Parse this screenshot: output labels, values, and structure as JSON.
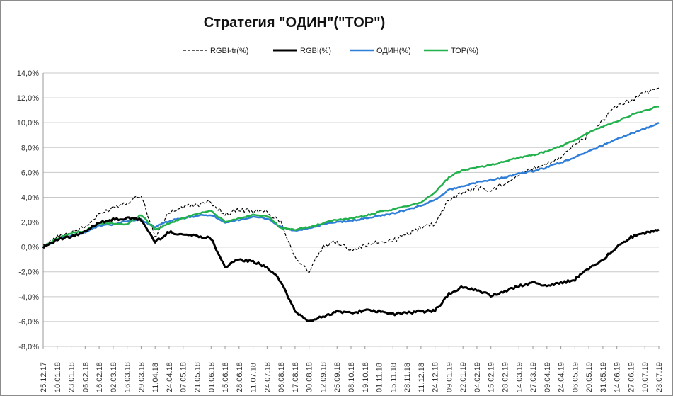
{
  "chart_data": {
    "type": "line",
    "title": "Стратегия \"ОДИН\"(\"ТОР\")",
    "xlabel": "",
    "ylabel": "",
    "ylim": [
      -8,
      14
    ],
    "y_ticks": [
      14,
      12,
      10,
      8,
      6,
      4,
      2,
      0,
      -2,
      -4,
      -6,
      -8
    ],
    "y_tick_labels": [
      "14,0%",
      "12,0%",
      "10,0%",
      "8,0%",
      "6,0%",
      "4,0%",
      "2,0%",
      "0,0%",
      "-2,0%",
      "-4,0%",
      "-6,0%",
      "-8,0%"
    ],
    "grid": "horizontal",
    "legend_position": "top",
    "x": [
      "25.12.17",
      "10.01.18",
      "23.01.18",
      "05.02.18",
      "16.02.18",
      "02.03.18",
      "16.03.18",
      "29.03.18",
      "11.04.18",
      "24.04.18",
      "07.05.18",
      "21.05.18",
      "01.06.18",
      "15.06.18",
      "28.06.18",
      "11.07.18",
      "24.07.18",
      "06.08.18",
      "17.08.18",
      "30.08.18",
      "12.09.18",
      "25.09.18",
      "08.10.18",
      "19.10.18",
      "01.11.18",
      "15.11.18",
      "28.11.18",
      "11.12.18",
      "24.12.18",
      "09.01.19",
      "22.01.19",
      "04.02.19",
      "15.02.19",
      "28.02.19",
      "14.03.19",
      "27.03.19",
      "09.04.19",
      "24.04.19",
      "06.05.19",
      "20.05.19",
      "31.05.19",
      "14.06.19",
      "27.06.19",
      "10.07.19",
      "23.07.19"
    ],
    "series": [
      {
        "name": "RGBI-tr(%)",
        "color": "#000000",
        "style": "dashed",
        "values": [
          0,
          0.8,
          1.2,
          1.6,
          2.6,
          3.2,
          3.6,
          4.2,
          0.8,
          2.8,
          3.2,
          3.4,
          3.6,
          2.6,
          3.0,
          2.9,
          2.8,
          2.0,
          -0.8,
          -2.0,
          0.0,
          0.4,
          -0.2,
          0.1,
          0.4,
          0.5,
          1.0,
          1.6,
          1.9,
          3.8,
          4.4,
          4.8,
          4.5,
          5.2,
          5.8,
          6.3,
          6.7,
          7.3,
          8.2,
          9.0,
          10.2,
          11.3,
          11.8,
          12.4,
          12.8
        ]
      },
      {
        "name": "RGBI(%)",
        "color": "#000000",
        "style": "solid-thick",
        "values": [
          0,
          0.6,
          0.8,
          1.2,
          2.0,
          2.2,
          2.3,
          2.2,
          0.4,
          1.2,
          1.0,
          0.9,
          0.7,
          -1.6,
          -1.0,
          -1.2,
          -1.6,
          -2.8,
          -5.2,
          -6.0,
          -5.6,
          -5.2,
          -5.3,
          -5.1,
          -5.2,
          -5.4,
          -5.3,
          -5.2,
          -5.1,
          -3.8,
          -3.2,
          -3.5,
          -3.9,
          -3.6,
          -3.1,
          -2.9,
          -3.1,
          -2.9,
          -2.6,
          -1.7,
          -1.0,
          0.0,
          0.8,
          1.1,
          1.4
        ]
      },
      {
        "name": "ОДИН(%)",
        "color": "#2f7ed8",
        "style": "solid",
        "values": [
          0,
          0.6,
          0.9,
          1.2,
          1.7,
          1.8,
          2.1,
          2.2,
          1.6,
          2.1,
          2.3,
          2.5,
          2.6,
          1.9,
          2.2,
          2.4,
          2.3,
          1.6,
          1.3,
          1.5,
          1.8,
          2.0,
          2.1,
          2.3,
          2.5,
          2.7,
          3.0,
          3.3,
          3.8,
          4.6,
          4.9,
          5.2,
          5.4,
          5.6,
          5.9,
          6.1,
          6.4,
          6.8,
          7.2,
          7.7,
          8.2,
          8.7,
          9.1,
          9.5,
          10.0
        ]
      },
      {
        "name": "ТОР(%)",
        "color": "#22b14c",
        "style": "solid",
        "values": [
          0,
          0.7,
          1.1,
          1.3,
          1.9,
          1.9,
          1.8,
          2.6,
          1.4,
          1.9,
          2.3,
          2.7,
          2.9,
          2.0,
          2.3,
          2.6,
          2.5,
          1.5,
          1.4,
          1.6,
          1.9,
          2.2,
          2.3,
          2.5,
          2.8,
          3.0,
          3.3,
          3.6,
          4.4,
          5.6,
          6.2,
          6.4,
          6.6,
          6.9,
          7.2,
          7.4,
          7.7,
          8.1,
          8.6,
          9.2,
          9.7,
          10.1,
          10.6,
          11.0,
          11.3
        ]
      }
    ]
  }
}
